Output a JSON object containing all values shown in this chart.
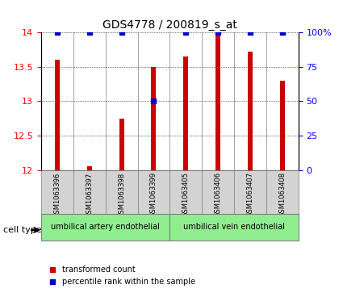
{
  "title": "GDS4778 / 200819_s_at",
  "samples": [
    "GSM1063396",
    "GSM1063397",
    "GSM1063398",
    "GSM1063399",
    "GSM1063405",
    "GSM1063406",
    "GSM1063407",
    "GSM1063408"
  ],
  "red_values": [
    13.6,
    12.05,
    12.75,
    13.5,
    13.65,
    13.98,
    13.72,
    13.3
  ],
  "blue_values": [
    100,
    100,
    100,
    50,
    100,
    100,
    100,
    100
  ],
  "ylim_left": [
    12,
    14
  ],
  "ylim_right": [
    0,
    100
  ],
  "yticks_left": [
    12,
    12.5,
    13,
    13.5,
    14
  ],
  "yticks_right": [
    0,
    25,
    50,
    75,
    100
  ],
  "cell_groups": [
    {
      "label": "umbilical artery endothelial",
      "start": 0,
      "end": 3,
      "color": "#90EE90"
    },
    {
      "label": "umbilical vein endothelial",
      "start": 4,
      "end": 7,
      "color": "#90EE90"
    }
  ],
  "cell_type_label": "cell type",
  "legend_red": "transformed count",
  "legend_blue": "percentile rank within the sample",
  "bar_color": "#CC0000",
  "dot_color": "#0000CC",
  "background_color": "#ffffff",
  "grid_color": "#000000",
  "sample_box_color": "#D3D3D3"
}
